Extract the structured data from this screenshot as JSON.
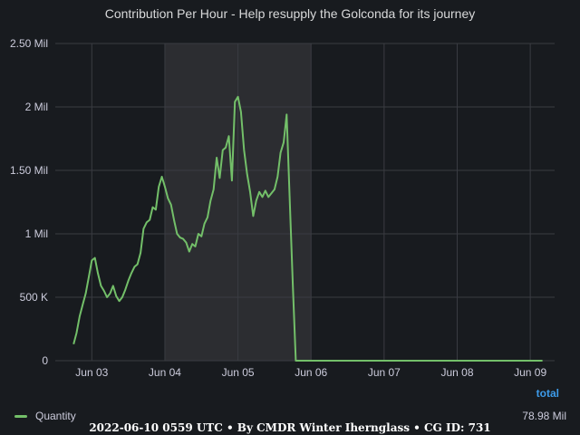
{
  "chart_data": {
    "type": "line",
    "title": "Contribution Per Hour - Help resupply the Golconda for its journey",
    "yticks": [
      {
        "value": 0,
        "label": "0"
      },
      {
        "value": 500000,
        "label": "500 K"
      },
      {
        "value": 1000000,
        "label": "1 Mil"
      },
      {
        "value": 1500000,
        "label": "1.50 Mil"
      },
      {
        "value": 2000000,
        "label": "2 Mil"
      },
      {
        "value": 2500000,
        "label": "2.50 Mil"
      }
    ],
    "ylim": [
      0,
      2500000
    ],
    "xlim": [
      "2022-06-02T12:00",
      "2022-06-09T08:00"
    ],
    "xticks": [
      {
        "value": "2022-06-03T00:00",
        "label": "Jun 03"
      },
      {
        "value": "2022-06-04T00:00",
        "label": "Jun 04"
      },
      {
        "value": "2022-06-05T00:00",
        "label": "Jun 05"
      },
      {
        "value": "2022-06-06T00:00",
        "label": "Jun 06"
      },
      {
        "value": "2022-06-07T00:00",
        "label": "Jun 07"
      },
      {
        "value": "2022-06-08T00:00",
        "label": "Jun 08"
      },
      {
        "value": "2022-06-09T00:00",
        "label": "Jun 09"
      }
    ],
    "highlight_range": [
      "2022-06-04T00:00",
      "2022-06-06T00:00"
    ],
    "grid": true,
    "legend_placement": "bottom",
    "series": [
      {
        "name": "Quantity",
        "color": "#73bf69",
        "points": [
          [
            "2022-06-02T18:00",
            130000
          ],
          [
            "2022-06-02T19:00",
            220000
          ],
          [
            "2022-06-02T20:00",
            350000
          ],
          [
            "2022-06-02T21:00",
            440000
          ],
          [
            "2022-06-02T22:00",
            530000
          ],
          [
            "2022-06-02T23:00",
            660000
          ],
          [
            "2022-06-03T00:00",
            790000
          ],
          [
            "2022-06-03T01:00",
            810000
          ],
          [
            "2022-06-03T02:00",
            690000
          ],
          [
            "2022-06-03T03:00",
            590000
          ],
          [
            "2022-06-03T04:00",
            550000
          ],
          [
            "2022-06-03T05:00",
            500000
          ],
          [
            "2022-06-03T06:00",
            530000
          ],
          [
            "2022-06-03T07:00",
            590000
          ],
          [
            "2022-06-03T08:00",
            510000
          ],
          [
            "2022-06-03T09:00",
            470000
          ],
          [
            "2022-06-03T10:00",
            500000
          ],
          [
            "2022-06-03T11:00",
            560000
          ],
          [
            "2022-06-03T12:00",
            630000
          ],
          [
            "2022-06-03T13:00",
            690000
          ],
          [
            "2022-06-03T14:00",
            740000
          ],
          [
            "2022-06-03T15:00",
            760000
          ],
          [
            "2022-06-03T16:00",
            850000
          ],
          [
            "2022-06-03T17:00",
            1040000
          ],
          [
            "2022-06-03T18:00",
            1090000
          ],
          [
            "2022-06-03T19:00",
            1110000
          ],
          [
            "2022-06-03T20:00",
            1210000
          ],
          [
            "2022-06-03T21:00",
            1190000
          ],
          [
            "2022-06-03T22:00",
            1370000
          ],
          [
            "2022-06-03T23:00",
            1450000
          ],
          [
            "2022-06-04T00:00",
            1370000
          ],
          [
            "2022-06-04T01:00",
            1280000
          ],
          [
            "2022-06-04T02:00",
            1230000
          ],
          [
            "2022-06-04T03:00",
            1110000
          ],
          [
            "2022-06-04T04:00",
            1000000
          ],
          [
            "2022-06-04T05:00",
            970000
          ],
          [
            "2022-06-04T06:00",
            960000
          ],
          [
            "2022-06-04T07:00",
            930000
          ],
          [
            "2022-06-04T08:00",
            860000
          ],
          [
            "2022-06-04T09:00",
            920000
          ],
          [
            "2022-06-04T10:00",
            900000
          ],
          [
            "2022-06-04T11:00",
            1000000
          ],
          [
            "2022-06-04T12:00",
            980000
          ],
          [
            "2022-06-04T13:00",
            1080000
          ],
          [
            "2022-06-04T14:00",
            1130000
          ],
          [
            "2022-06-04T15:00",
            1260000
          ],
          [
            "2022-06-04T16:00",
            1350000
          ],
          [
            "2022-06-04T17:00",
            1600000
          ],
          [
            "2022-06-04T18:00",
            1440000
          ],
          [
            "2022-06-04T19:00",
            1660000
          ],
          [
            "2022-06-04T20:00",
            1680000
          ],
          [
            "2022-06-04T21:00",
            1770000
          ],
          [
            "2022-06-04T22:00",
            1420000
          ],
          [
            "2022-06-04T23:00",
            2040000
          ],
          [
            "2022-06-05T00:00",
            2080000
          ],
          [
            "2022-06-05T01:00",
            1960000
          ],
          [
            "2022-06-05T02:00",
            1660000
          ],
          [
            "2022-06-05T03:00",
            1470000
          ],
          [
            "2022-06-05T04:00",
            1330000
          ],
          [
            "2022-06-05T05:00",
            1140000
          ],
          [
            "2022-06-05T06:00",
            1260000
          ],
          [
            "2022-06-05T07:00",
            1330000
          ],
          [
            "2022-06-05T08:00",
            1290000
          ],
          [
            "2022-06-05T09:00",
            1340000
          ],
          [
            "2022-06-05T10:00",
            1290000
          ],
          [
            "2022-06-05T11:00",
            1320000
          ],
          [
            "2022-06-05T12:00",
            1350000
          ],
          [
            "2022-06-05T13:00",
            1450000
          ],
          [
            "2022-06-05T14:00",
            1640000
          ],
          [
            "2022-06-05T15:00",
            1720000
          ],
          [
            "2022-06-05T16:00",
            1940000
          ],
          [
            "2022-06-05T18:00",
            600000
          ],
          [
            "2022-06-05T19:00",
            0
          ],
          [
            "2022-06-06T00:00",
            0
          ],
          [
            "2022-06-07T00:00",
            0
          ],
          [
            "2022-06-08T00:00",
            0
          ],
          [
            "2022-06-09T00:00",
            0
          ],
          [
            "2022-06-09T04:00",
            0
          ]
        ]
      }
    ]
  },
  "legend": {
    "header": "total",
    "items": [
      {
        "name": "Quantity",
        "value": "78.98 Mil",
        "color": "#73bf69"
      }
    ]
  },
  "footer": {
    "text": "2022-06-10 0559 UTC • By CMDR Winter Iherngl​ass • CG ID: 731"
  }
}
